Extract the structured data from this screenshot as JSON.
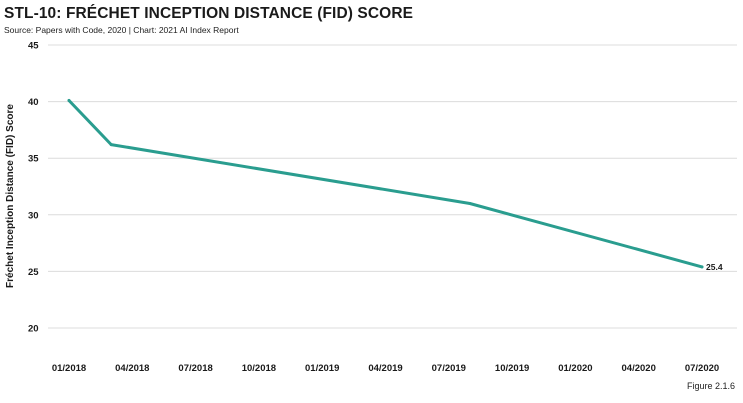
{
  "header": {
    "title": "STL-10: FRÉCHET INCEPTION DISTANCE (FID) SCORE",
    "subtitle": "Source: Papers with Code, 2020 | Chart: 2021 AI Index Report"
  },
  "footer": {
    "figure_label": "Figure 2.1.6"
  },
  "chart_data": {
    "type": "line",
    "title": "STL-10: FRÉCHET INCEPTION DISTANCE (FID) SCORE",
    "subtitle": "Source: Papers with Code, 2020 | Chart: 2021 AI Index Report",
    "xlabel": "",
    "ylabel": "Fréchet Inception Distance (FID) Score",
    "x_ticks": [
      "01/2018",
      "04/2018",
      "07/2018",
      "10/2018",
      "01/2019",
      "04/2019",
      "07/2019",
      "10/2019",
      "01/2020",
      "04/2020",
      "07/2020"
    ],
    "y_ticks": [
      20,
      25,
      30,
      35,
      40,
      45
    ],
    "ylim": [
      20,
      45
    ],
    "grid": true,
    "line_color": "#2a9d8f",
    "series": [
      {
        "points": [
          {
            "x": "2018-01",
            "y": 40.1
          },
          {
            "x": "2018-03",
            "y": 36.2
          },
          {
            "x": "2019-08",
            "y": 31.0
          },
          {
            "x": "2020-07",
            "y": 25.4
          }
        ]
      }
    ],
    "data_labels": [
      {
        "x": "2020-07",
        "y": 25.4,
        "text": "25.4"
      }
    ]
  }
}
